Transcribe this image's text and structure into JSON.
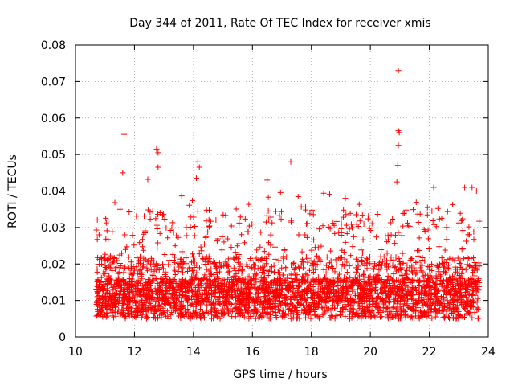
{
  "chart_data": {
    "type": "scatter",
    "title": "Day 344 of 2011, Rate Of TEC Index for receiver xmis",
    "xlabel": "GPS time / hours",
    "ylabel": "ROTI / TECUs",
    "xlim": [
      10,
      24
    ],
    "ylim": [
      0,
      0.08
    ],
    "x_ticks": [
      "10",
      "12",
      "14",
      "16",
      "18",
      "20",
      "22",
      "24"
    ],
    "y_ticks": [
      "0",
      "0.01",
      "0.02",
      "0.03",
      "0.04",
      "0.05",
      "0.06",
      "0.07",
      "0.08"
    ],
    "grid": true,
    "marker": "+",
    "series": [
      {
        "name": "ROTI",
        "color": "#ff0000",
        "x_range": [
          10.7,
          23.7
        ],
        "typical_range": [
          0.005,
          0.02
        ],
        "notable_points": [
          {
            "x": 11.65,
            "y": 0.0555
          },
          {
            "x": 11.6,
            "y": 0.045
          },
          {
            "x": 12.75,
            "y": 0.0515
          },
          {
            "x": 12.8,
            "y": 0.0505
          },
          {
            "x": 12.8,
            "y": 0.0465
          },
          {
            "x": 12.45,
            "y": 0.0432
          },
          {
            "x": 14.15,
            "y": 0.048
          },
          {
            "x": 14.2,
            "y": 0.0465
          },
          {
            "x": 14.1,
            "y": 0.0435
          },
          {
            "x": 17.3,
            "y": 0.048
          },
          {
            "x": 16.5,
            "y": 0.043
          },
          {
            "x": 19.15,
            "y": 0.038
          },
          {
            "x": 20.95,
            "y": 0.073
          },
          {
            "x": 20.95,
            "y": 0.0565
          },
          {
            "x": 20.98,
            "y": 0.056
          },
          {
            "x": 20.95,
            "y": 0.0525
          },
          {
            "x": 20.93,
            "y": 0.047
          },
          {
            "x": 20.9,
            "y": 0.0425
          },
          {
            "x": 22.15,
            "y": 0.041
          },
          {
            "x": 23.2,
            "y": 0.041
          },
          {
            "x": 23.45,
            "y": 0.041
          },
          {
            "x": 23.6,
            "y": 0.04
          },
          {
            "x": 10.8,
            "y": 0.028
          }
        ]
      }
    ]
  }
}
